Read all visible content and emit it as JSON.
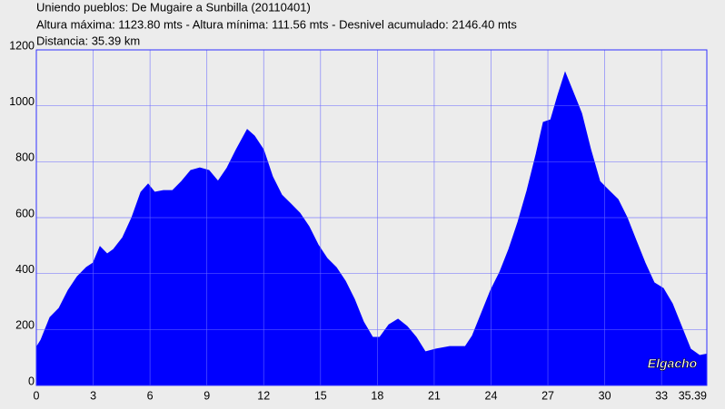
{
  "chart_data": {
    "type": "area",
    "title": "Uniendo pueblos: De Mugaire a Sunbilla (20110401)",
    "subtitle": "Altura máxima: 1123.80 mts - Altura mínima: 111.56 mts - Desnivel acumulado: 2146.40 mts",
    "annotation": "Distancia: 35.39 km",
    "watermark": "Elgacho",
    "color": "#0000ff",
    "grid": true,
    "x": [
      0,
      0.24,
      0.72,
      1.2,
      1.68,
      2.16,
      2.64,
      3,
      3.36,
      3.74,
      4.08,
      4.56,
      5.04,
      5.52,
      5.9,
      6.24,
      6.71,
      7.19,
      7.67,
      8.15,
      8.63,
      9.11,
      9.59,
      10.07,
      10.55,
      11.13,
      11.51,
      11.99,
      12.47,
      12.95,
      13.43,
      13.91,
      14.39,
      14.87,
      15.35,
      15.83,
      16.31,
      16.79,
      17.27,
      17.75,
      18.13,
      18.61,
      19.09,
      19.57,
      20.05,
      20.53,
      21.1,
      21.82,
      22.64,
      23.02,
      23.5,
      23.98,
      24.46,
      24.94,
      25.42,
      25.9,
      26.38,
      26.76,
      27.15,
      27.53,
      27.91,
      28.3,
      28.78,
      29.26,
      29.74,
      30.22,
      30.7,
      31.18,
      31.65,
      32.13,
      32.61,
      33.09,
      33.57,
      34.05,
      34.53,
      35.01,
      35.39
    ],
    "values": [
      136,
      162,
      243,
      276,
      340,
      389,
      422,
      438,
      496,
      470,
      487,
      529,
      600,
      691,
      720,
      691,
      697,
      697,
      730,
      769,
      778,
      769,
      730,
      778,
      843,
      915,
      892,
      843,
      746,
      681,
      649,
      616,
      568,
      503,
      454,
      422,
      373,
      308,
      227,
      172,
      172,
      217,
      237,
      211,
      172,
      120,
      130,
      139,
      139,
      178,
      259,
      340,
      405,
      487,
      584,
      697,
      827,
      941,
      950,
      1038,
      1119,
      1054,
      973,
      843,
      730,
      697,
      665,
      600,
      519,
      438,
      367,
      347,
      292,
      211,
      130,
      107,
      112
    ],
    "xlim": [
      0,
      35.39
    ],
    "xticks": [
      0,
      3,
      6,
      9,
      12,
      15,
      18,
      21,
      24,
      27,
      30,
      33,
      35.39
    ],
    "ylim": [
      0,
      1200
    ],
    "yticks": [
      0,
      200,
      400,
      600,
      800,
      1000,
      1200
    ]
  }
}
